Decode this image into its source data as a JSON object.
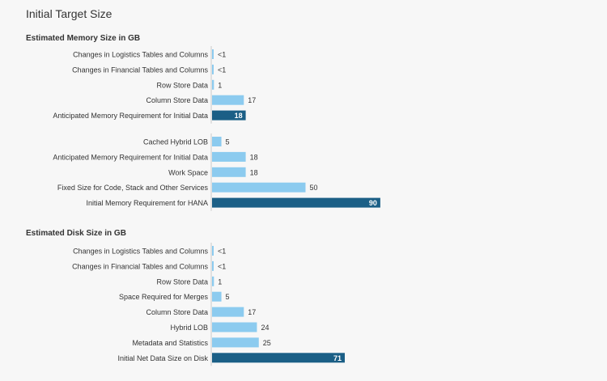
{
  "page": {
    "title": "Initial Target Size"
  },
  "colors": {
    "light_bar": "#8ccbef",
    "dark_bar": "#1b5f86",
    "axis": "#c8c8c8",
    "text": "#333333"
  },
  "chart_data": [
    {
      "type": "bar",
      "orientation": "horizontal",
      "title": "Estimated Memory Size in GB",
      "groups": [
        {
          "categories": [
            "Changes in Logistics Tables and Columns",
            "Changes in Financial Tables and Columns",
            "Row Store Data",
            "Column Store Data",
            "Anticipated Memory Requirement for Initial Data"
          ],
          "values": [
            0.3,
            0.3,
            1,
            17,
            18
          ],
          "labels": [
            "<1",
            "<1",
            "1",
            "17",
            "18"
          ],
          "highlight": [
            false,
            false,
            false,
            false,
            true
          ]
        },
        {
          "categories": [
            "Cached Hybrid LOB",
            "Anticipated Memory Requirement for Initial Data",
            "Work Space",
            "Fixed Size for Code, Stack and Other Services",
            "Initial Memory Requirement for HANA"
          ],
          "values": [
            5,
            18,
            18,
            50,
            90
          ],
          "labels": [
            "5",
            "18",
            "18",
            "50",
            "90"
          ],
          "highlight": [
            false,
            false,
            false,
            false,
            true
          ]
        }
      ]
    },
    {
      "type": "bar",
      "orientation": "horizontal",
      "title": "Estimated Disk Size in GB",
      "groups": [
        {
          "categories": [
            "Changes in Logistics Tables and Columns",
            "Changes in Financial Tables and Columns",
            "Row Store Data",
            "Space Required for Merges",
            "Column Store Data",
            "Hybrid LOB",
            "Metadata and Statistics",
            "Initial Net Data Size on Disk"
          ],
          "values": [
            0.3,
            0.3,
            1,
            5,
            17,
            24,
            25,
            71
          ],
          "labels": [
            "<1",
            "<1",
            "1",
            "5",
            "17",
            "24",
            "25",
            "71"
          ],
          "highlight": [
            false,
            false,
            false,
            false,
            false,
            false,
            false,
            true
          ]
        }
      ]
    }
  ]
}
